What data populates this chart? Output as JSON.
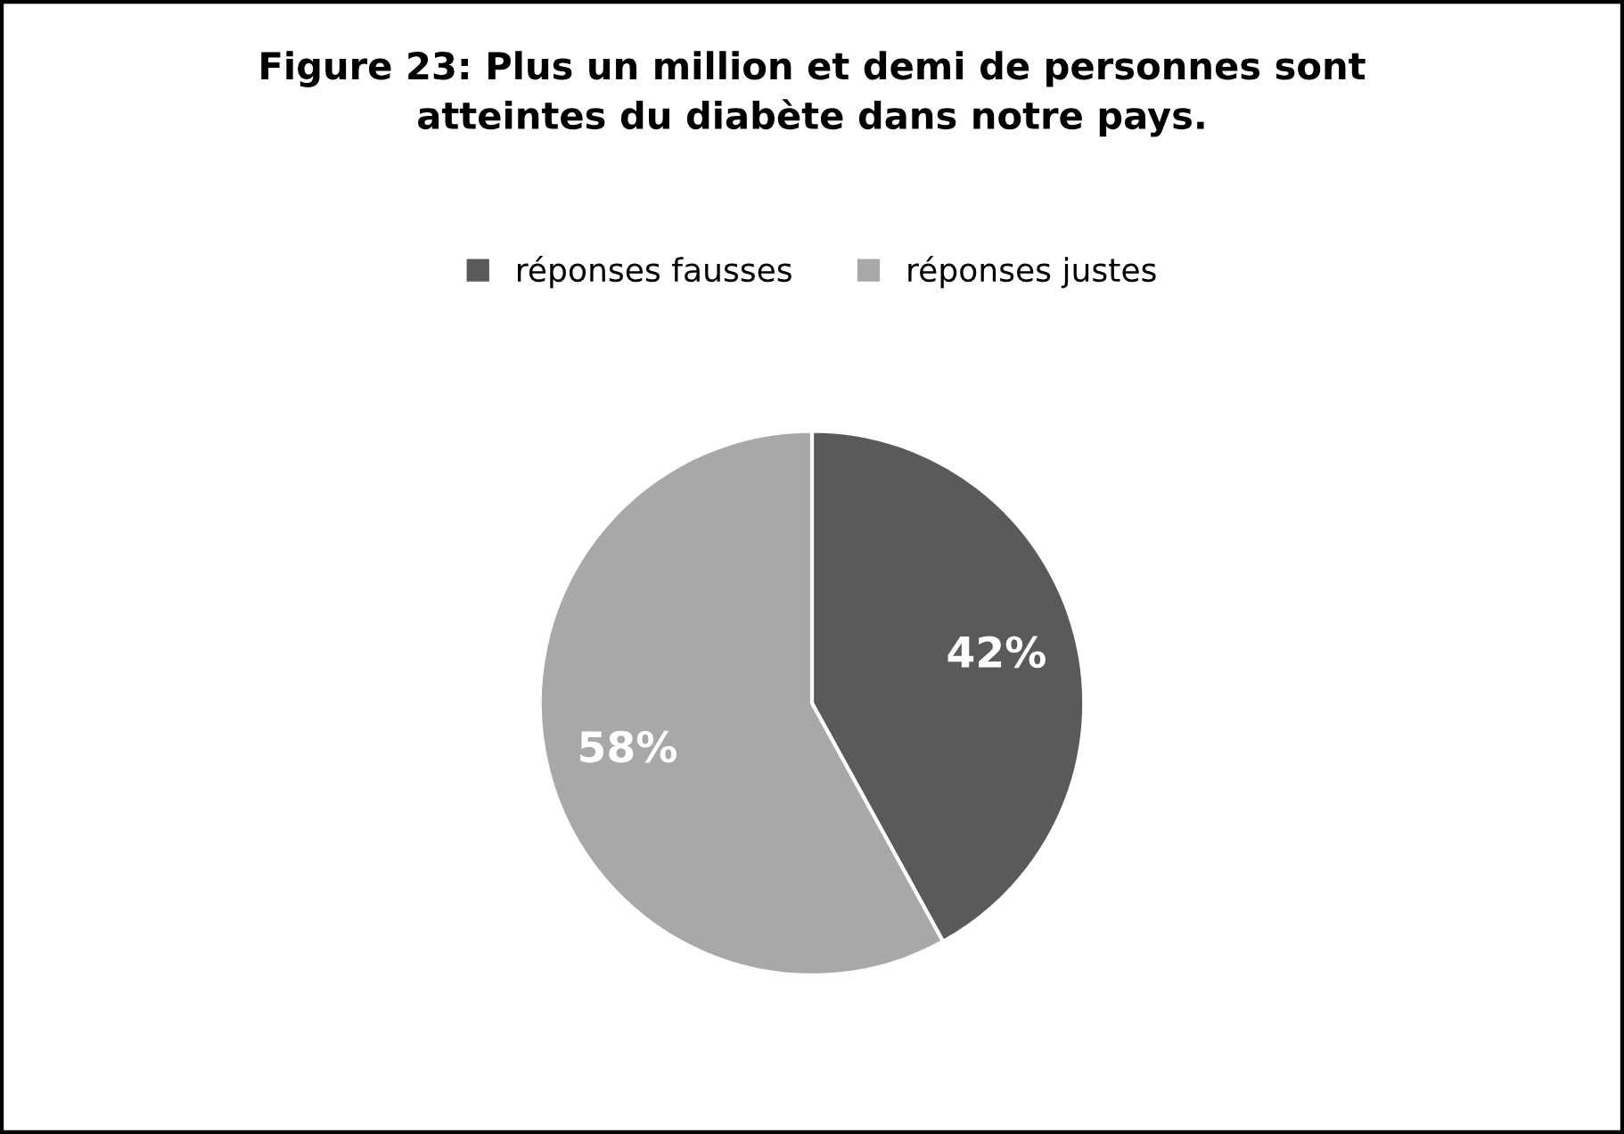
{
  "chart_data": {
    "type": "pie",
    "title": "Figure 23: Plus un million et demi de personnes sont\natteintes du diabète dans notre pays.",
    "categories": [
      "réponses fausses",
      "réponses justes"
    ],
    "values": [
      42,
      58
    ],
    "colors": [
      "#5a5a5a",
      "#a8a8a8"
    ],
    "value_labels": [
      "42%",
      "58%"
    ],
    "legend": "top"
  }
}
